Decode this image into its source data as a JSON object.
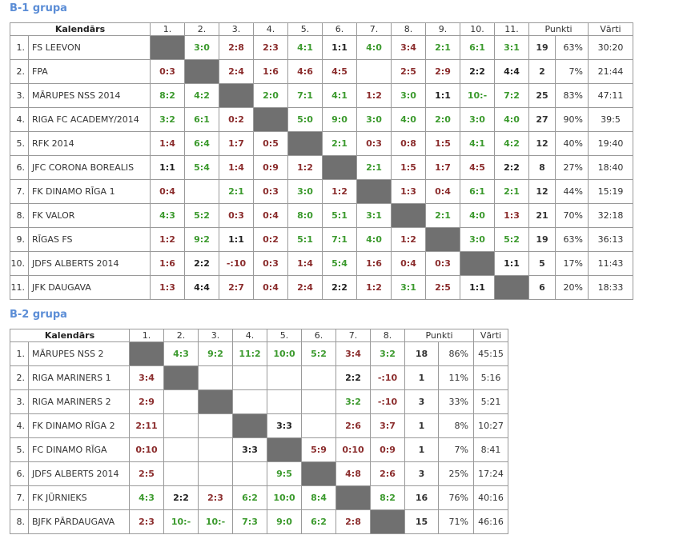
{
  "colors": {
    "title": "#5b8dd6",
    "win": "#3c9a2e",
    "loss": "#8b2d2d",
    "draw": "#222222",
    "diagonal": "#707070"
  },
  "groups": [
    {
      "title": "B-1 grupa",
      "header": {
        "calendar": "Kalendārs",
        "cols": [
          "1.",
          "2.",
          "3.",
          "4.",
          "5.",
          "6.",
          "7.",
          "8.",
          "9.",
          "10.",
          "11."
        ],
        "points": "Punkti",
        "goals": "Vārti"
      },
      "rows": [
        {
          "num": "1.",
          "team": "FS LEEVON",
          "results": [
            {
              "v": "X"
            },
            {
              "v": "3:0",
              "r": "W"
            },
            {
              "v": "2:8",
              "r": "L"
            },
            {
              "v": "2:3",
              "r": "L"
            },
            {
              "v": "4:1",
              "r": "W"
            },
            {
              "v": "1:1",
              "r": "D"
            },
            {
              "v": "4:0",
              "r": "W"
            },
            {
              "v": "3:4",
              "r": "L"
            },
            {
              "v": "2:1",
              "r": "W"
            },
            {
              "v": "6:1",
              "r": "W"
            },
            {
              "v": "3:1",
              "r": "W"
            }
          ],
          "points": "19",
          "pct": "63%",
          "goals": "30:20"
        },
        {
          "num": "2.",
          "team": "FPA",
          "results": [
            {
              "v": "0:3",
              "r": "L"
            },
            {
              "v": "X"
            },
            {
              "v": "2:4",
              "r": "L"
            },
            {
              "v": "1:6",
              "r": "L"
            },
            {
              "v": "4:6",
              "r": "L"
            },
            {
              "v": "4:5",
              "r": "L"
            },
            {
              "v": ""
            },
            {
              "v": "2:5",
              "r": "L"
            },
            {
              "v": "2:9",
              "r": "L"
            },
            {
              "v": "2:2",
              "r": "D"
            },
            {
              "v": "4:4",
              "r": "D"
            }
          ],
          "points": "2",
          "pct": "7%",
          "goals": "21:44"
        },
        {
          "num": "3.",
          "team": "MĀRUPES NSS 2014",
          "results": [
            {
              "v": "8:2",
              "r": "W"
            },
            {
              "v": "4:2",
              "r": "W"
            },
            {
              "v": "X"
            },
            {
              "v": "2:0",
              "r": "W"
            },
            {
              "v": "7:1",
              "r": "W"
            },
            {
              "v": "4:1",
              "r": "W"
            },
            {
              "v": "1:2",
              "r": "L"
            },
            {
              "v": "3:0",
              "r": "W"
            },
            {
              "v": "1:1",
              "r": "D"
            },
            {
              "v": "10:-",
              "r": "W"
            },
            {
              "v": "7:2",
              "r": "W"
            }
          ],
          "points": "25",
          "pct": "83%",
          "goals": "47:11"
        },
        {
          "num": "4.",
          "team": "RIGA FC ACADEMY/2014",
          "results": [
            {
              "v": "3:2",
              "r": "W"
            },
            {
              "v": "6:1",
              "r": "W"
            },
            {
              "v": "0:2",
              "r": "L"
            },
            {
              "v": "X"
            },
            {
              "v": "5:0",
              "r": "W"
            },
            {
              "v": "9:0",
              "r": "W"
            },
            {
              "v": "3:0",
              "r": "W"
            },
            {
              "v": "4:0",
              "r": "W"
            },
            {
              "v": "2:0",
              "r": "W"
            },
            {
              "v": "3:0",
              "r": "W"
            },
            {
              "v": "4:0",
              "r": "W"
            }
          ],
          "points": "27",
          "pct": "90%",
          "goals": "39:5"
        },
        {
          "num": "5.",
          "team": "RFK 2014",
          "results": [
            {
              "v": "1:4",
              "r": "L"
            },
            {
              "v": "6:4",
              "r": "W"
            },
            {
              "v": "1:7",
              "r": "L"
            },
            {
              "v": "0:5",
              "r": "L"
            },
            {
              "v": "X"
            },
            {
              "v": "2:1",
              "r": "W"
            },
            {
              "v": "0:3",
              "r": "L"
            },
            {
              "v": "0:8",
              "r": "L"
            },
            {
              "v": "1:5",
              "r": "L"
            },
            {
              "v": "4:1",
              "r": "W"
            },
            {
              "v": "4:2",
              "r": "W"
            }
          ],
          "points": "12",
          "pct": "40%",
          "goals": "19:40"
        },
        {
          "num": "6.",
          "team": "JFC CORONA BOREALIS",
          "results": [
            {
              "v": "1:1",
              "r": "D"
            },
            {
              "v": "5:4",
              "r": "W"
            },
            {
              "v": "1:4",
              "r": "L"
            },
            {
              "v": "0:9",
              "r": "L"
            },
            {
              "v": "1:2",
              "r": "L"
            },
            {
              "v": "X"
            },
            {
              "v": "2:1",
              "r": "W"
            },
            {
              "v": "1:5",
              "r": "L"
            },
            {
              "v": "1:7",
              "r": "L"
            },
            {
              "v": "4:5",
              "r": "L"
            },
            {
              "v": "2:2",
              "r": "D"
            }
          ],
          "points": "8",
          "pct": "27%",
          "goals": "18:40"
        },
        {
          "num": "7.",
          "team": "FK DINAMO RĪGA 1",
          "results": [
            {
              "v": "0:4",
              "r": "L"
            },
            {
              "v": ""
            },
            {
              "v": "2:1",
              "r": "W"
            },
            {
              "v": "0:3",
              "r": "L"
            },
            {
              "v": "3:0",
              "r": "W"
            },
            {
              "v": "1:2",
              "r": "L"
            },
            {
              "v": "X"
            },
            {
              "v": "1:3",
              "r": "L"
            },
            {
              "v": "0:4",
              "r": "L"
            },
            {
              "v": "6:1",
              "r": "W"
            },
            {
              "v": "2:1",
              "r": "W"
            }
          ],
          "points": "12",
          "pct": "44%",
          "goals": "15:19"
        },
        {
          "num": "8.",
          "team": "FK VALOR",
          "results": [
            {
              "v": "4:3",
              "r": "W"
            },
            {
              "v": "5:2",
              "r": "W"
            },
            {
              "v": "0:3",
              "r": "L"
            },
            {
              "v": "0:4",
              "r": "L"
            },
            {
              "v": "8:0",
              "r": "W"
            },
            {
              "v": "5:1",
              "r": "W"
            },
            {
              "v": "3:1",
              "r": "W"
            },
            {
              "v": "X"
            },
            {
              "v": "2:1",
              "r": "W"
            },
            {
              "v": "4:0",
              "r": "W"
            },
            {
              "v": "1:3",
              "r": "L"
            }
          ],
          "points": "21",
          "pct": "70%",
          "goals": "32:18"
        },
        {
          "num": "9.",
          "team": "RĪGAS FS",
          "results": [
            {
              "v": "1:2",
              "r": "L"
            },
            {
              "v": "9:2",
              "r": "W"
            },
            {
              "v": "1:1",
              "r": "D"
            },
            {
              "v": "0:2",
              "r": "L"
            },
            {
              "v": "5:1",
              "r": "W"
            },
            {
              "v": "7:1",
              "r": "W"
            },
            {
              "v": "4:0",
              "r": "W"
            },
            {
              "v": "1:2",
              "r": "L"
            },
            {
              "v": "X"
            },
            {
              "v": "3:0",
              "r": "W"
            },
            {
              "v": "5:2",
              "r": "W"
            }
          ],
          "points": "19",
          "pct": "63%",
          "goals": "36:13"
        },
        {
          "num": "10.",
          "team": "JDFS ALBERTS 2014",
          "results": [
            {
              "v": "1:6",
              "r": "L"
            },
            {
              "v": "2:2",
              "r": "D"
            },
            {
              "v": "-:10",
              "r": "L"
            },
            {
              "v": "0:3",
              "r": "L"
            },
            {
              "v": "1:4",
              "r": "L"
            },
            {
              "v": "5:4",
              "r": "W"
            },
            {
              "v": "1:6",
              "r": "L"
            },
            {
              "v": "0:4",
              "r": "L"
            },
            {
              "v": "0:3",
              "r": "L"
            },
            {
              "v": "X"
            },
            {
              "v": "1:1",
              "r": "D"
            }
          ],
          "points": "5",
          "pct": "17%",
          "goals": "11:43"
        },
        {
          "num": "11.",
          "team": "JFK DAUGAVA",
          "results": [
            {
              "v": "1:3",
              "r": "L"
            },
            {
              "v": "4:4",
              "r": "D"
            },
            {
              "v": "2:7",
              "r": "L"
            },
            {
              "v": "0:4",
              "r": "L"
            },
            {
              "v": "2:4",
              "r": "L"
            },
            {
              "v": "2:2",
              "r": "D"
            },
            {
              "v": "1:2",
              "r": "L"
            },
            {
              "v": "3:1",
              "r": "W"
            },
            {
              "v": "2:5",
              "r": "L"
            },
            {
              "v": "1:1",
              "r": "D"
            },
            {
              "v": "X"
            }
          ],
          "points": "6",
          "pct": "20%",
          "goals": "18:33"
        }
      ]
    },
    {
      "title": "B-2 grupa",
      "header": {
        "calendar": "Kalendārs",
        "cols": [
          "1.",
          "2.",
          "3.",
          "4.",
          "5.",
          "6.",
          "7.",
          "8."
        ],
        "points": "Punkti",
        "goals": "Vārti"
      },
      "rows": [
        {
          "num": "1.",
          "team": "MĀRUPES NSS 2",
          "results": [
            {
              "v": "X"
            },
            {
              "v": "4:3",
              "r": "W"
            },
            {
              "v": "9:2",
              "r": "W"
            },
            {
              "v": "11:2",
              "r": "W"
            },
            {
              "v": "10:0",
              "r": "W"
            },
            {
              "v": "5:2",
              "r": "W"
            },
            {
              "v": "3:4",
              "r": "L"
            },
            {
              "v": "3:2",
              "r": "W"
            }
          ],
          "points": "18",
          "pct": "86%",
          "goals": "45:15"
        },
        {
          "num": "2.",
          "team": "RIGA MARINERS 1",
          "results": [
            {
              "v": "3:4",
              "r": "L"
            },
            {
              "v": "X"
            },
            {
              "v": ""
            },
            {
              "v": ""
            },
            {
              "v": ""
            },
            {
              "v": ""
            },
            {
              "v": "2:2",
              "r": "D"
            },
            {
              "v": "-:10",
              "r": "L"
            }
          ],
          "points": "1",
          "pct": "11%",
          "goals": "5:16"
        },
        {
          "num": "3.",
          "team": "RIGA MARINERS 2",
          "results": [
            {
              "v": "2:9",
              "r": "L"
            },
            {
              "v": ""
            },
            {
              "v": "X"
            },
            {
              "v": ""
            },
            {
              "v": ""
            },
            {
              "v": ""
            },
            {
              "v": "3:2",
              "r": "W"
            },
            {
              "v": "-:10",
              "r": "L"
            }
          ],
          "points": "3",
          "pct": "33%",
          "goals": "5:21"
        },
        {
          "num": "4.",
          "team": "FK DINAMO RĪGA 2",
          "results": [
            {
              "v": "2:11",
              "r": "L"
            },
            {
              "v": ""
            },
            {
              "v": ""
            },
            {
              "v": "X"
            },
            {
              "v": "3:3",
              "r": "D"
            },
            {
              "v": ""
            },
            {
              "v": "2:6",
              "r": "L"
            },
            {
              "v": "3:7",
              "r": "L"
            }
          ],
          "points": "1",
          "pct": "8%",
          "goals": "10:27"
        },
        {
          "num": "5.",
          "team": "FC DINAMO RĪGA",
          "results": [
            {
              "v": "0:10",
              "r": "L"
            },
            {
              "v": ""
            },
            {
              "v": ""
            },
            {
              "v": "3:3",
              "r": "D"
            },
            {
              "v": "X"
            },
            {
              "v": "5:9",
              "r": "L"
            },
            {
              "v": "0:10",
              "r": "L"
            },
            {
              "v": "0:9",
              "r": "L"
            }
          ],
          "points": "1",
          "pct": "7%",
          "goals": "8:41"
        },
        {
          "num": "6.",
          "team": "JDFS ALBERTS 2014",
          "results": [
            {
              "v": "2:5",
              "r": "L"
            },
            {
              "v": ""
            },
            {
              "v": ""
            },
            {
              "v": ""
            },
            {
              "v": "9:5",
              "r": "W"
            },
            {
              "v": "X"
            },
            {
              "v": "4:8",
              "r": "L"
            },
            {
              "v": "2:6",
              "r": "L"
            }
          ],
          "points": "3",
          "pct": "25%",
          "goals": "17:24"
        },
        {
          "num": "7.",
          "team": "FK JŪRNIEKS",
          "results": [
            {
              "v": "4:3",
              "r": "W"
            },
            {
              "v": "2:2",
              "r": "D"
            },
            {
              "v": "2:3",
              "r": "L"
            },
            {
              "v": "6:2",
              "r": "W"
            },
            {
              "v": "10:0",
              "r": "W"
            },
            {
              "v": "8:4",
              "r": "W"
            },
            {
              "v": "X"
            },
            {
              "v": "8:2",
              "r": "W"
            }
          ],
          "points": "16",
          "pct": "76%",
          "goals": "40:16"
        },
        {
          "num": "8.",
          "team": "BJFK PĀRDAUGAVA",
          "results": [
            {
              "v": "2:3",
              "r": "L"
            },
            {
              "v": "10:-",
              "r": "W"
            },
            {
              "v": "10:-",
              "r": "W"
            },
            {
              "v": "7:3",
              "r": "W"
            },
            {
              "v": "9:0",
              "r": "W"
            },
            {
              "v": "6:2",
              "r": "W"
            },
            {
              "v": "2:8",
              "r": "L"
            },
            {
              "v": "X"
            }
          ],
          "points": "15",
          "pct": "71%",
          "goals": "46:16"
        }
      ]
    }
  ]
}
